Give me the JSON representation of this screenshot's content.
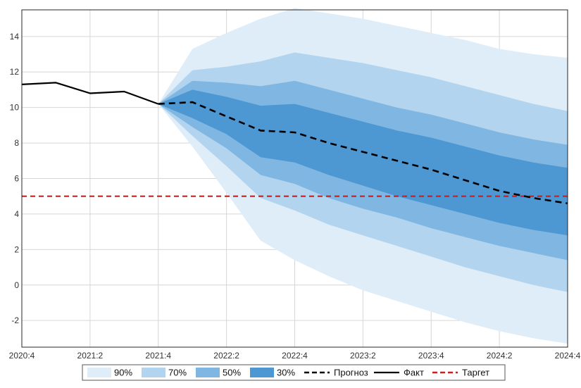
{
  "chart_data": {
    "type": "area",
    "title": "",
    "xlabel": "",
    "ylabel": "",
    "x_categories": [
      "2020:4",
      "2021:1",
      "2021:2",
      "2021:3",
      "2021:4",
      "2022:1",
      "2022:2",
      "2022:3",
      "2022:4",
      "2023:1",
      "2023:2",
      "2023:3",
      "2023:4",
      "2024:1",
      "2024:2",
      "2024:3",
      "2024:4"
    ],
    "x_tick_labels": [
      "2020:4",
      "2021:2",
      "2021:4",
      "2022:2",
      "2022:4",
      "2023:2",
      "2023:4",
      "2024:2",
      "2024:4"
    ],
    "y_ticks": [
      -2,
      0,
      2,
      4,
      6,
      8,
      10,
      12,
      14
    ],
    "ylim": [
      -3.5,
      15.5
    ],
    "grid": true,
    "colors": {
      "band90": "#deedf8",
      "band70": "#b3d4ee",
      "band50": "#80b7e2",
      "band30": "#4d97d2",
      "fact": "#000000",
      "forecast": "#000000",
      "target": "#cc1f1f",
      "grid": "#d6d6d6"
    },
    "fact": {
      "x": [
        "2020:4",
        "2021:1",
        "2021:2",
        "2021:3",
        "2021:4"
      ],
      "values": [
        11.3,
        11.4,
        10.8,
        10.9,
        10.2
      ]
    },
    "forecast": {
      "x": [
        "2021:4",
        "2022:1",
        "2022:2",
        "2022:3",
        "2022:4",
        "2023:1",
        "2023:2",
        "2023:3",
        "2023:4",
        "2024:1",
        "2024:2",
        "2024:3",
        "2024:4"
      ],
      "values": [
        10.2,
        10.3,
        9.5,
        8.7,
        8.6,
        8.0,
        7.5,
        7.0,
        6.5,
        5.9,
        5.3,
        4.9,
        4.6
      ]
    },
    "bands": [
      {
        "name": "90%",
        "x": [
          "2021:4",
          "2022:1",
          "2022:2",
          "2022:3",
          "2022:4",
          "2023:1",
          "2023:2",
          "2023:3",
          "2023:4",
          "2024:1",
          "2024:2",
          "2024:3",
          "2024:4"
        ],
        "upper": [
          10.2,
          13.3,
          14.2,
          15.0,
          15.6,
          15.3,
          15.0,
          14.6,
          14.2,
          13.8,
          13.3,
          13.0,
          12.8
        ],
        "lower": [
          10.2,
          7.8,
          5.2,
          2.5,
          1.4,
          0.5,
          -0.3,
          -0.9,
          -1.5,
          -2.1,
          -2.6,
          -3.0,
          -3.3
        ]
      },
      {
        "name": "70%",
        "x": [
          "2021:4",
          "2022:1",
          "2022:2",
          "2022:3",
          "2022:4",
          "2023:1",
          "2023:2",
          "2023:3",
          "2023:4",
          "2024:1",
          "2024:2",
          "2024:3",
          "2024:4"
        ],
        "upper": [
          10.2,
          12.1,
          12.3,
          12.6,
          13.1,
          12.8,
          12.5,
          12.1,
          11.7,
          11.2,
          10.7,
          10.2,
          9.8
        ],
        "lower": [
          10.2,
          8.4,
          6.7,
          4.9,
          4.2,
          3.4,
          2.8,
          2.2,
          1.6,
          1.0,
          0.5,
          0.0,
          -0.4
        ]
      },
      {
        "name": "50%",
        "x": [
          "2021:4",
          "2022:1",
          "2022:2",
          "2022:3",
          "2022:4",
          "2023:1",
          "2023:2",
          "2023:3",
          "2023:4",
          "2024:1",
          "2024:2",
          "2024:3",
          "2024:4"
        ],
        "upper": [
          10.2,
          11.5,
          11.4,
          11.2,
          11.5,
          11.0,
          10.5,
          10.0,
          9.6,
          9.1,
          8.6,
          8.2,
          7.9
        ],
        "lower": [
          10.2,
          8.9,
          7.7,
          6.2,
          5.7,
          4.9,
          4.3,
          3.8,
          3.2,
          2.7,
          2.2,
          1.8,
          1.4
        ]
      },
      {
        "name": "30%",
        "x": [
          "2021:4",
          "2022:1",
          "2022:2",
          "2022:3",
          "2022:4",
          "2023:1",
          "2023:2",
          "2023:3",
          "2023:4",
          "2024:1",
          "2024:2",
          "2024:3",
          "2024:4"
        ],
        "upper": [
          10.2,
          11.0,
          10.6,
          10.1,
          10.2,
          9.7,
          9.2,
          8.7,
          8.3,
          7.8,
          7.3,
          6.9,
          6.6
        ],
        "lower": [
          10.2,
          9.4,
          8.5,
          7.2,
          6.9,
          6.2,
          5.6,
          5.0,
          4.5,
          4.0,
          3.5,
          3.1,
          2.8
        ]
      }
    ],
    "target": {
      "value": 5
    },
    "legend": {
      "position": "bottom",
      "items": [
        {
          "label": "90%",
          "kind": "patch",
          "color_key": "band90"
        },
        {
          "label": "70%",
          "kind": "patch",
          "color_key": "band70"
        },
        {
          "label": "50%",
          "kind": "patch",
          "color_key": "band50"
        },
        {
          "label": "30%",
          "kind": "patch",
          "color_key": "band30"
        },
        {
          "label": "Прогноз",
          "kind": "dashed",
          "color_key": "forecast"
        },
        {
          "label": "Факт",
          "kind": "solid",
          "color_key": "fact"
        },
        {
          "label": "Таргет",
          "kind": "dashed",
          "color_key": "target"
        }
      ]
    }
  }
}
